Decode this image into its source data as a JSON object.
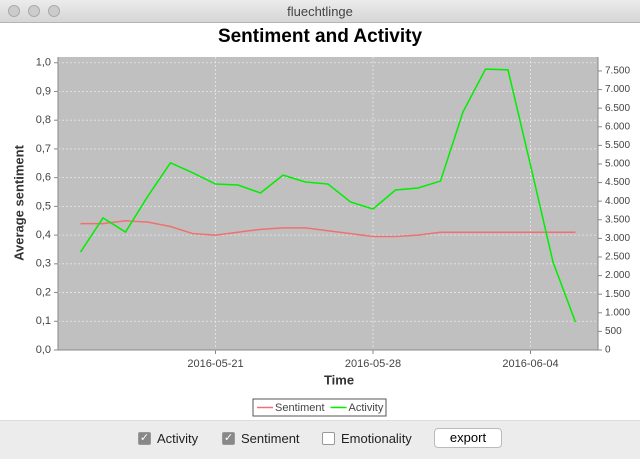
{
  "window": {
    "title": "fluechtlinge"
  },
  "chart_data": {
    "type": "line",
    "title": "Sentiment and Activity",
    "x_label": "Time",
    "y_label": "Average sentiment",
    "x": [
      "2016-05-15",
      "2016-05-16",
      "2016-05-17",
      "2016-05-18",
      "2016-05-19",
      "2016-05-20",
      "2016-05-21",
      "2016-05-22",
      "2016-05-23",
      "2016-05-24",
      "2016-05-25",
      "2016-05-26",
      "2016-05-27",
      "2016-05-28",
      "2016-05-29",
      "2016-05-30",
      "2016-05-31",
      "2016-06-01",
      "2016-06-02",
      "2016-06-03",
      "2016-06-04",
      "2016-06-05",
      "2016-06-06"
    ],
    "series": [
      {
        "name": "Sentiment",
        "color": "#f07070",
        "axis": "y",
        "values": [
          0.44,
          0.44,
          0.45,
          0.445,
          0.43,
          0.405,
          0.4,
          0.41,
          0.42,
          0.425,
          0.425,
          0.415,
          0.405,
          0.395,
          0.395,
          0.4,
          0.41,
          0.41,
          0.41,
          0.41,
          0.41,
          0.41,
          0.41
        ]
      },
      {
        "name": "Activity",
        "color": "#00ee00",
        "axis": "y2",
        "values": [
          2630,
          3550,
          3170,
          4140,
          5030,
          4760,
          4460,
          4435,
          4220,
          4700,
          4515,
          4460,
          3980,
          3790,
          4300,
          4355,
          4540,
          6400,
          7550,
          7530,
          4970,
          2365,
          750
        ]
      }
    ],
    "xlim": [
      "2016-05-14",
      "2016-06-07"
    ],
    "xticks": [
      "2016-05-21",
      "2016-05-28",
      "2016-06-04"
    ],
    "ylim": [
      0,
      1.02
    ],
    "yticks": [
      {
        "value": 0,
        "label": "0,0"
      },
      {
        "value": 0.1,
        "label": "0,1"
      },
      {
        "value": 0.2,
        "label": "0,2"
      },
      {
        "value": 0.3,
        "label": "0,3"
      },
      {
        "value": 0.4,
        "label": "0,4"
      },
      {
        "value": 0.5,
        "label": "0,5"
      },
      {
        "value": 0.6,
        "label": "0,6"
      },
      {
        "value": 0.7,
        "label": "0,7"
      },
      {
        "value": 0.8,
        "label": "0,8"
      },
      {
        "value": 0.9,
        "label": "0,9"
      },
      {
        "value": 1.0,
        "label": "1,0"
      }
    ],
    "y2lim": [
      0,
      7875
    ],
    "y2ticks": [
      0,
      500,
      {
        "value": 1000,
        "label": "1.000"
      },
      {
        "value": 1500,
        "label": "1.500"
      },
      {
        "value": 2000,
        "label": "2.000"
      },
      {
        "value": 2500,
        "label": "2.500"
      },
      {
        "value": 3000,
        "label": "3.000"
      },
      {
        "value": 3500,
        "label": "3.500"
      },
      {
        "value": 4000,
        "label": "4.000"
      },
      {
        "value": 4500,
        "label": "4.500"
      },
      {
        "value": 5000,
        "label": "5.000"
      },
      {
        "value": 5500,
        "label": "5.500"
      },
      {
        "value": 6000,
        "label": "6.000"
      },
      {
        "value": 6500,
        "label": "6.500"
      },
      {
        "value": 7000,
        "label": "7.000"
      },
      {
        "value": 7500,
        "label": "7.500"
      }
    ],
    "grid": true,
    "legend": "bottom"
  },
  "controls": {
    "checkboxes": [
      {
        "label": "Activity",
        "checked": true
      },
      {
        "label": "Sentiment",
        "checked": true
      },
      {
        "label": "Emotionality",
        "checked": false
      }
    ],
    "button": "export"
  }
}
